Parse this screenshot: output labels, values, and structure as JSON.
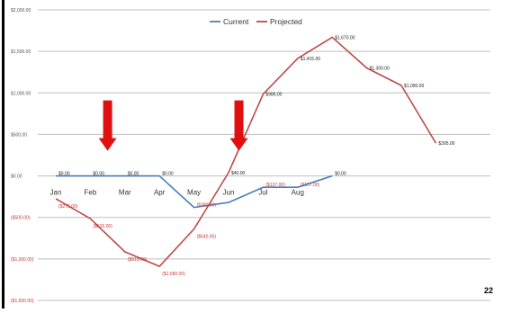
{
  "page": {
    "number": "22"
  },
  "colors": {
    "current": "#4a7ebb",
    "projected": "#be4b48",
    "arrow": "#e01010",
    "grid": "#bfbfbf",
    "axis_text": "#555555"
  },
  "chart_data": {
    "type": "line",
    "title": "",
    "xlabel": "",
    "ylabel": "",
    "ylim": [
      -1500,
      2000
    ],
    "yticks": [
      2000,
      1500,
      1000,
      500,
      0,
      -500,
      -1000,
      -1500
    ],
    "ytick_labels": [
      "$2,000.00",
      "$1,500.00",
      "$1,000.00",
      "$500.00",
      "$0.00",
      "($500.00)",
      "($1,000.00)",
      "($1,500.00)"
    ],
    "grid": true,
    "legend_position": "top-center",
    "categories": [
      "Jan",
      "Feb",
      "Mar",
      "Apr",
      "May",
      "Jun",
      "Jul",
      "Aug"
    ],
    "series": [
      {
        "name": "Current",
        "color": "#4a7ebb",
        "x": [
          0,
          1,
          2,
          3,
          4,
          5,
          6,
          7,
          8
        ],
        "values": [
          0,
          0,
          0,
          0,
          -380,
          -320,
          -137,
          -137,
          0
        ],
        "labels": [
          "$0.00",
          "$0.00",
          "$0.00",
          "$0.00",
          "($380.00)",
          "",
          "($137.00)",
          "($137.00)",
          "$0.00"
        ]
      },
      {
        "name": "Projected",
        "color": "#be4b48",
        "x": [
          0,
          1,
          2,
          3,
          4,
          5,
          6,
          7,
          8,
          9,
          10,
          11
        ],
        "values": [
          -275,
          -515,
          -915,
          -1090,
          -640,
          40,
          985,
          1415,
          1670,
          1300,
          1090,
          395
        ],
        "labels": [
          "($275.00)",
          "($515.00)",
          "($915.00)",
          "($1,090.00)",
          "($640.00)",
          "$40.00",
          "$985.00",
          "$1,415.00",
          "$1,670.00",
          "$1,300.00",
          "$1,090.00",
          "$395.00"
        ]
      }
    ],
    "annotations": [
      {
        "type": "arrow",
        "direction": "down",
        "at_month": 1.5,
        "pointing_to": 0
      },
      {
        "type": "arrow",
        "direction": "down",
        "at_month": 5.3,
        "pointing_to": 0
      }
    ]
  }
}
